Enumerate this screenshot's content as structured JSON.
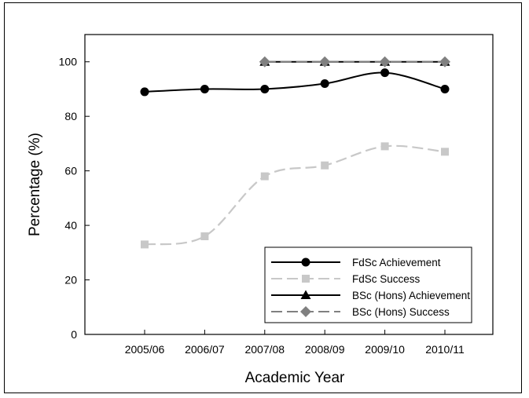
{
  "chart_data": {
    "type": "line",
    "title": "",
    "xlabel": "Academic Year",
    "ylabel": "Percentage (%)",
    "categories": [
      "2005/06",
      "2006/07",
      "2007/08",
      "2008/09",
      "2009/10",
      "2010/11"
    ],
    "ylim": [
      0,
      110
    ],
    "yticks": [
      0,
      20,
      40,
      60,
      80,
      100
    ],
    "legend_position": "bottom-right",
    "grid": false,
    "series": [
      {
        "name": "FdSc Achievement",
        "values": [
          89,
          90,
          90,
          92,
          96,
          90
        ],
        "color": "#000000",
        "line_style": "solid",
        "marker": "circle"
      },
      {
        "name": "FdSc Success",
        "values": [
          33,
          36,
          58,
          62,
          69,
          67
        ],
        "color": "#c8c8c8",
        "line_style": "dashed",
        "marker": "square"
      },
      {
        "name": "BSc (Hons) Achievement",
        "values": [
          null,
          null,
          100,
          100,
          100,
          100
        ],
        "color": "#000000",
        "line_style": "solid",
        "marker": "triangle"
      },
      {
        "name": "BSc (Hons) Success",
        "values": [
          null,
          null,
          100,
          100,
          100,
          100
        ],
        "color": "#808080",
        "line_style": "dashed",
        "marker": "diamond"
      }
    ]
  }
}
